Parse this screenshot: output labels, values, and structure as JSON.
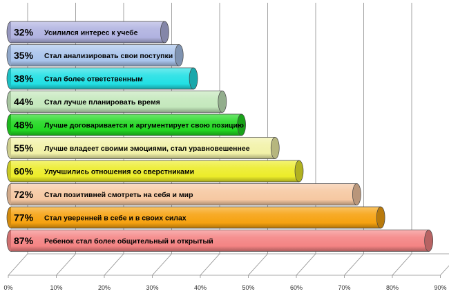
{
  "chart_data": {
    "type": "bar",
    "orientation": "horizontal",
    "style": "3d-cylinder",
    "x_unit": "%",
    "xlim": [
      0,
      90
    ],
    "x_ticks": [
      "0%",
      "10%",
      "20%",
      "30%",
      "40%",
      "50%",
      "60%",
      "70%",
      "80%",
      "90%"
    ],
    "grid": true,
    "categories": [
      "Усилился интерес к учебе",
      "Стал анализировать свои поступки",
      "Стал более ответственным",
      "Стал лучше планировать время",
      "Лучше договаривается и аргументирует свою позицию",
      "Лучше владеет своими эмоциями, стал уравновешеннее",
      "Улучшились отношения со сверстниками",
      "Стал позитивней смотреть на себя и мир",
      "Стал уверенней в себе и  в своих силах",
      "Ребенок стал более общительный и открытый"
    ],
    "values": [
      32,
      35,
      38,
      44,
      48,
      55,
      60,
      72,
      77,
      87
    ],
    "value_labels": [
      "32%",
      "35%",
      "38%",
      "44%",
      "48%",
      "55%",
      "60%",
      "72%",
      "77%",
      "87%"
    ],
    "colors": [
      "#b0b2e0",
      "#a9c4ec",
      "#22e0e4",
      "#c4e8bc",
      "#22d822",
      "#f2f2a8",
      "#ecec2a",
      "#f6c8a2",
      "#f6a210",
      "#f48484"
    ]
  }
}
